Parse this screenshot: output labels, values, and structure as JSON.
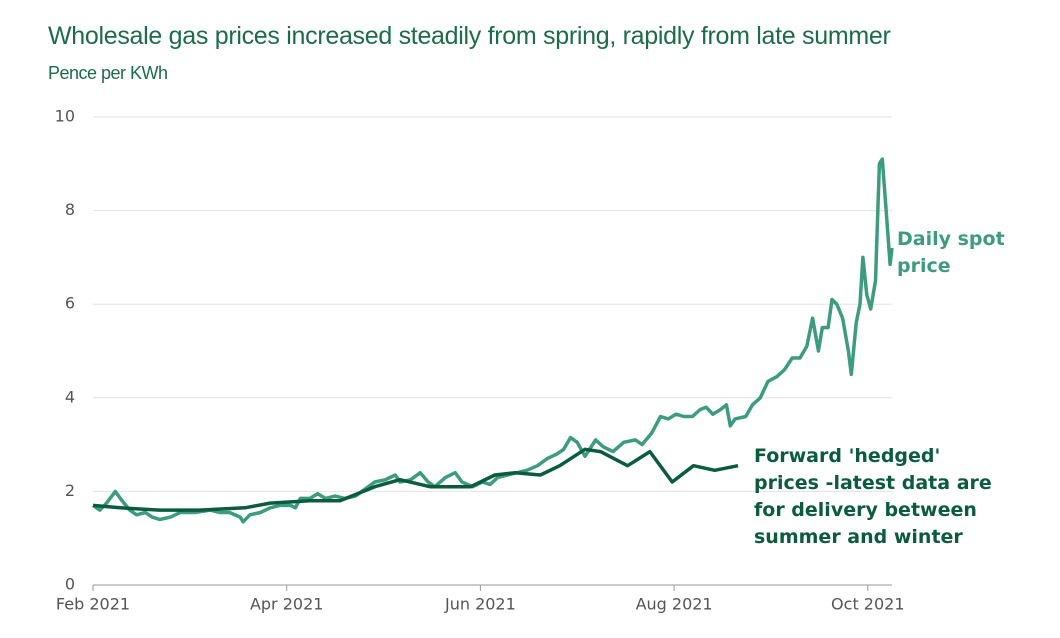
{
  "chart_data": {
    "type": "line",
    "title": "Wholesale gas prices increased steadily from spring, rapidly from late summer",
    "y_label": "Pence per KWh",
    "xlim": [
      0,
      8.25
    ],
    "ylim": [
      0,
      10
    ],
    "xticks": [
      {
        "value": 0,
        "label": "Feb 2021"
      },
      {
        "value": 2,
        "label": "Apr 2021"
      },
      {
        "value": 4,
        "label": "Jun 2021"
      },
      {
        "value": 6,
        "label": "Aug 2021"
      },
      {
        "value": 8,
        "label": "Oct 2021"
      }
    ],
    "yticks": [
      0,
      2,
      4,
      6,
      8,
      10
    ],
    "grid": true,
    "series": [
      {
        "name": "Daily spot price",
        "color": "#3d9c80",
        "x": [
          0,
          0.07,
          0.14,
          0.23,
          0.3,
          0.38,
          0.45,
          0.54,
          0.61,
          0.69,
          0.8,
          0.9,
          1.05,
          1.21,
          1.31,
          1.41,
          1.52,
          1.55,
          1.62,
          1.73,
          1.83,
          1.93,
          2.04,
          2.09,
          2.14,
          2.24,
          2.32,
          2.4,
          2.5,
          2.6,
          2.71,
          2.81,
          2.91,
          3.02,
          3.12,
          3.17,
          3.28,
          3.38,
          3.46,
          3.53,
          3.64,
          3.74,
          3.81,
          3.92,
          4.02,
          4.1,
          4.18,
          4.28,
          4.38,
          4.48,
          4.59,
          4.69,
          4.79,
          4.86,
          4.93,
          5.0,
          5.08,
          5.19,
          5.27,
          5.37,
          5.48,
          5.6,
          5.67,
          5.77,
          5.86,
          5.94,
          6.02,
          6.1,
          6.19,
          6.27,
          6.33,
          6.4,
          6.48,
          6.54,
          6.58,
          6.63,
          6.74,
          6.81,
          6.89,
          6.97,
          7.06,
          7.14,
          7.22,
          7.3,
          7.37,
          7.43,
          7.49,
          7.53,
          7.59,
          7.63,
          7.68,
          7.74,
          7.8,
          7.83,
          7.88,
          7.92,
          7.95,
          7.99,
          8.03,
          8.08,
          8.12,
          8.15,
          8.2,
          8.23,
          8.25
        ],
        "values": [
          1.7,
          1.6,
          1.75,
          2.0,
          1.8,
          1.6,
          1.5,
          1.55,
          1.45,
          1.4,
          1.45,
          1.55,
          1.55,
          1.6,
          1.55,
          1.55,
          1.45,
          1.35,
          1.5,
          1.55,
          1.65,
          1.7,
          1.7,
          1.65,
          1.85,
          1.85,
          1.95,
          1.85,
          1.9,
          1.85,
          1.9,
          2.05,
          2.2,
          2.25,
          2.35,
          2.2,
          2.25,
          2.4,
          2.2,
          2.1,
          2.3,
          2.4,
          2.2,
          2.1,
          2.2,
          2.15,
          2.3,
          2.35,
          2.4,
          2.45,
          2.55,
          2.7,
          2.8,
          2.9,
          3.15,
          3.05,
          2.75,
          3.1,
          2.95,
          2.85,
          3.05,
          3.1,
          3.0,
          3.25,
          3.6,
          3.55,
          3.65,
          3.6,
          3.6,
          3.75,
          3.8,
          3.65,
          3.75,
          3.85,
          3.4,
          3.55,
          3.6,
          3.85,
          4.0,
          4.35,
          4.45,
          4.6,
          4.85,
          4.85,
          5.1,
          5.7,
          5.0,
          5.5,
          5.5,
          6.1,
          6.0,
          5.7,
          5.0,
          4.5,
          5.6,
          6.0,
          7.0,
          6.2,
          5.9,
          6.5,
          9.0,
          9.1,
          7.7,
          6.85,
          7.2
        ]
      },
      {
        "name": "Forward 'hedged' prices -latest data are for delivery between summer and winter",
        "color": "#0b5c3f",
        "x": [
          0,
          0.28,
          0.69,
          1.1,
          1.57,
          1.83,
          2.24,
          2.55,
          2.91,
          3.17,
          3.48,
          3.9,
          4.15,
          4.36,
          4.62,
          4.82,
          5.08,
          5.24,
          5.52,
          5.75,
          5.98,
          6.2,
          6.42,
          6.66
        ],
        "values": [
          1.7,
          1.65,
          1.6,
          1.6,
          1.65,
          1.75,
          1.8,
          1.8,
          2.1,
          2.25,
          2.1,
          2.1,
          2.35,
          2.4,
          2.35,
          2.55,
          2.9,
          2.85,
          2.55,
          2.85,
          2.2,
          2.55,
          2.45,
          2.55
        ]
      }
    ]
  }
}
